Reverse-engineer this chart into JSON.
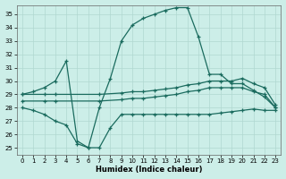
{
  "xlabel": "Humidex (Indice chaleur)",
  "xlim": [
    -0.5,
    23.5
  ],
  "ylim": [
    24.5,
    35.7
  ],
  "yticks": [
    25,
    26,
    27,
    28,
    29,
    30,
    31,
    32,
    33,
    34,
    35
  ],
  "xticks": [
    0,
    1,
    2,
    3,
    4,
    5,
    6,
    7,
    8,
    9,
    10,
    11,
    12,
    13,
    14,
    15,
    16,
    17,
    18,
    19,
    20,
    21,
    22,
    23
  ],
  "bg_color": "#cceee8",
  "grid_color": "#b0d8d0",
  "line_color": "#1a6b5e",
  "curves": [
    {
      "x": [
        0,
        1,
        2,
        3,
        4,
        5,
        6,
        7,
        8,
        9,
        10,
        11,
        12,
        13,
        14,
        15,
        16,
        17,
        18,
        19,
        20,
        21,
        22,
        23
      ],
      "y": [
        29.0,
        29.2,
        29.5,
        30.0,
        31.5,
        25.5,
        25.0,
        28.0,
        30.2,
        33.0,
        34.2,
        34.7,
        35.0,
        35.3,
        35.5,
        35.5,
        33.3,
        30.5,
        30.5,
        29.8,
        29.8,
        29.3,
        28.8,
        28.0
      ],
      "marker": "+"
    },
    {
      "x": [
        0,
        2,
        3,
        7,
        9,
        10,
        11,
        12,
        13,
        14,
        15,
        16,
        17,
        18,
        19,
        20,
        21,
        22,
        23
      ],
      "y": [
        29.0,
        29.0,
        29.0,
        29.0,
        29.1,
        29.2,
        29.2,
        29.3,
        29.4,
        29.5,
        29.7,
        29.8,
        30.0,
        30.0,
        30.0,
        30.2,
        29.8,
        29.5,
        28.2
      ],
      "marker": "+"
    },
    {
      "x": [
        0,
        2,
        3,
        7,
        9,
        10,
        11,
        12,
        13,
        14,
        15,
        16,
        17,
        18,
        19,
        20,
        21,
        22,
        23
      ],
      "y": [
        28.5,
        28.5,
        28.5,
        28.5,
        28.6,
        28.7,
        28.7,
        28.8,
        28.9,
        29.0,
        29.2,
        29.3,
        29.5,
        29.5,
        29.5,
        29.5,
        29.2,
        29.0,
        28.0
      ],
      "marker": "+"
    },
    {
      "x": [
        0,
        1,
        2,
        3,
        4,
        5,
        6,
        7,
        8,
        9,
        10,
        11,
        12,
        13,
        14,
        15,
        16,
        17,
        18,
        19,
        20,
        21,
        22,
        23
      ],
      "y": [
        28.0,
        27.8,
        27.5,
        27.0,
        26.7,
        25.3,
        25.0,
        25.0,
        26.5,
        27.5,
        27.5,
        27.5,
        27.5,
        27.5,
        27.5,
        27.5,
        27.5,
        27.5,
        27.6,
        27.7,
        27.8,
        27.9,
        27.8,
        27.8
      ],
      "marker": "+"
    }
  ]
}
